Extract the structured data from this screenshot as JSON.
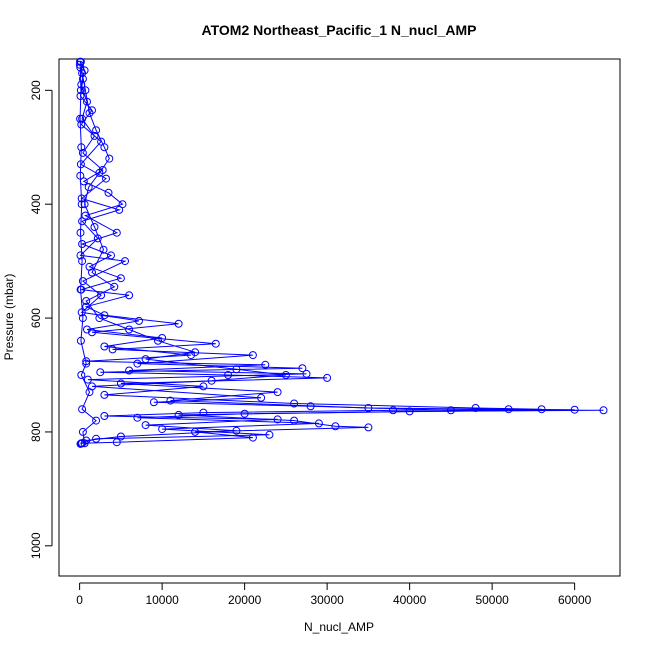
{
  "chart_data": {
    "type": "scatter",
    "title": "ATOM2 Northeast_Pacific_1 N_nucl_AMP",
    "xlabel": "N_nucl_AMP",
    "ylabel": "Pressure (mbar)",
    "xlim": [
      -2500,
      65500
    ],
    "ylim": [
      1053,
      145
    ],
    "y_reversed": true,
    "x_ticks": [
      0,
      10000,
      20000,
      30000,
      40000,
      50000,
      60000
    ],
    "y_ticks": [
      200,
      400,
      600,
      800,
      1000
    ],
    "x_tick_labels": [
      "0",
      "10000",
      "20000",
      "30000",
      "40000",
      "50000",
      "60000"
    ],
    "y_tick_labels": [
      "200",
      "400",
      "600",
      "800",
      "1000"
    ],
    "marker": "open-circle",
    "connected": true,
    "grid": false,
    "colors": {
      "series": "#0000ff",
      "axes": "#000000"
    },
    "series": [
      {
        "points": [
          [
            150,
            150
          ],
          [
            300,
            170
          ],
          [
            700,
            200
          ],
          [
            1200,
            240
          ],
          [
            2000,
            270
          ],
          [
            3000,
            300
          ],
          [
            3600,
            320
          ],
          [
            2400,
            345
          ],
          [
            1100,
            370
          ],
          [
            600,
            400
          ],
          [
            1800,
            440
          ],
          [
            2900,
            480
          ],
          [
            1500,
            520
          ],
          [
            4200,
            545
          ],
          [
            800,
            570
          ],
          [
            2400,
            600
          ],
          [
            6000,
            620
          ],
          [
            9500,
            640
          ],
          [
            14000,
            660
          ],
          [
            8000,
            672
          ],
          [
            19000,
            690
          ],
          [
            25000,
            700
          ],
          [
            16000,
            710
          ],
          [
            1500,
            720
          ],
          [
            22000,
            740
          ],
          [
            9000,
            748
          ],
          [
            28000,
            755
          ],
          [
            45000,
            762
          ],
          [
            63500,
            762
          ],
          [
            40000,
            764
          ],
          [
            12000,
            770
          ],
          [
            26000,
            780
          ],
          [
            31000,
            790
          ],
          [
            35000,
            792
          ],
          [
            14000,
            800
          ],
          [
            21000,
            810
          ],
          [
            4500,
            818
          ],
          [
            300,
            820
          ]
        ]
      },
      {
        "points": [
          [
            50,
            150
          ],
          [
            600,
            165
          ],
          [
            200,
            190
          ],
          [
            900,
            220
          ],
          [
            300,
            250
          ],
          [
            1800,
            280
          ],
          [
            400,
            310
          ],
          [
            2800,
            340
          ],
          [
            500,
            360
          ],
          [
            3500,
            380
          ],
          [
            5200,
            400
          ],
          [
            700,
            420
          ],
          [
            4500,
            450
          ],
          [
            300,
            470
          ],
          [
            3800,
            490
          ],
          [
            1200,
            510
          ],
          [
            5000,
            530
          ],
          [
            200,
            550
          ],
          [
            6000,
            560
          ],
          [
            800,
            580
          ],
          [
            3000,
            595
          ],
          [
            12000,
            610
          ],
          [
            1500,
            625
          ],
          [
            16500,
            645
          ],
          [
            4000,
            655
          ],
          [
            21000,
            665
          ],
          [
            7000,
            680
          ],
          [
            27000,
            688
          ],
          [
            2500,
            695
          ],
          [
            18000,
            700
          ],
          [
            30000,
            705
          ],
          [
            5000,
            715
          ],
          [
            24000,
            730
          ],
          [
            11000,
            745
          ],
          [
            35000,
            758
          ],
          [
            52000,
            760
          ],
          [
            60000,
            761
          ],
          [
            20000,
            768
          ],
          [
            7000,
            775
          ],
          [
            29000,
            785
          ],
          [
            10000,
            795
          ],
          [
            23000,
            805
          ],
          [
            2000,
            812
          ],
          [
            200,
            820
          ]
        ]
      },
      {
        "points": [
          [
            20,
            155
          ],
          [
            400,
            180
          ],
          [
            100,
            210
          ],
          [
            1500,
            235
          ],
          [
            200,
            260
          ],
          [
            2600,
            290
          ],
          [
            150,
            330
          ],
          [
            3200,
            355
          ],
          [
            250,
            390
          ],
          [
            4800,
            410
          ],
          [
            300,
            430
          ],
          [
            2200,
            460
          ],
          [
            100,
            490
          ],
          [
            5500,
            500
          ],
          [
            400,
            535
          ],
          [
            2600,
            560
          ],
          [
            250,
            590
          ],
          [
            7200,
            605
          ],
          [
            900,
            620
          ],
          [
            10000,
            635
          ],
          [
            3000,
            650
          ],
          [
            13500,
            665
          ],
          [
            800,
            676
          ],
          [
            22500,
            682
          ],
          [
            6000,
            692
          ],
          [
            27500,
            698
          ],
          [
            1000,
            708
          ],
          [
            15000,
            720
          ],
          [
            3000,
            735
          ],
          [
            26000,
            750
          ],
          [
            48000,
            758
          ],
          [
            56000,
            760
          ],
          [
            38000,
            762
          ],
          [
            15000,
            766
          ],
          [
            3000,
            772
          ],
          [
            24000,
            778
          ],
          [
            8000,
            788
          ],
          [
            19000,
            798
          ],
          [
            5000,
            808
          ],
          [
            800,
            815
          ],
          [
            100,
            821
          ]
        ]
      },
      {
        "points": [
          [
            80,
            160
          ],
          [
            150,
            200
          ],
          [
            60,
            250
          ],
          [
            200,
            300
          ],
          [
            80,
            350
          ],
          [
            250,
            400
          ],
          [
            100,
            450
          ],
          [
            300,
            500
          ],
          [
            120,
            550
          ],
          [
            400,
            600
          ],
          [
            150,
            640
          ],
          [
            800,
            680
          ],
          [
            200,
            700
          ],
          [
            1200,
            730
          ],
          [
            300,
            760
          ],
          [
            2000,
            780
          ],
          [
            400,
            800
          ],
          [
            600,
            820
          ]
        ]
      }
    ]
  }
}
